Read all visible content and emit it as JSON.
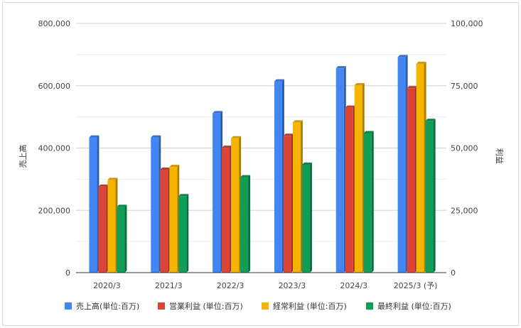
{
  "chart_data": {
    "type": "bar",
    "categories": [
      "2020/3",
      "2021/3",
      "2022/3",
      "2023/3",
      "2024/3",
      "2025/3 (予)"
    ],
    "y_left": {
      "label": "売上高",
      "ylim": [
        0,
        800000
      ],
      "ticks": [
        "0",
        "200,000",
        "400,000",
        "600,000",
        "800,000"
      ]
    },
    "y_right": {
      "label": "利益",
      "ylim": [
        0,
        100000
      ],
      "ticks": [
        "0",
        "25,000",
        "50,000",
        "75,000",
        "100,000"
      ]
    },
    "series": [
      {
        "name": "売上高(単位:百万)",
        "axis": "left",
        "color": "#4285f4",
        "values": [
          434000,
          434000,
          512000,
          614000,
          656000,
          692000
        ]
      },
      {
        "name": "営業利益 (単位:百万)",
        "axis": "right",
        "color": "#db4437",
        "values": [
          34500,
          41300,
          50100,
          54900,
          66200,
          74000
        ]
      },
      {
        "name": "経常利益 (単位:百万)",
        "axis": "right",
        "color": "#f4b400",
        "values": [
          37200,
          42400,
          53900,
          60300,
          75200,
          83800
        ]
      },
      {
        "name": "最終利益 (単位:百万)",
        "axis": "right",
        "color": "#0f9d58",
        "values": [
          26400,
          30700,
          38300,
          43300,
          56000,
          60900
        ]
      }
    ],
    "grid": true,
    "legend_position": "bottom"
  }
}
